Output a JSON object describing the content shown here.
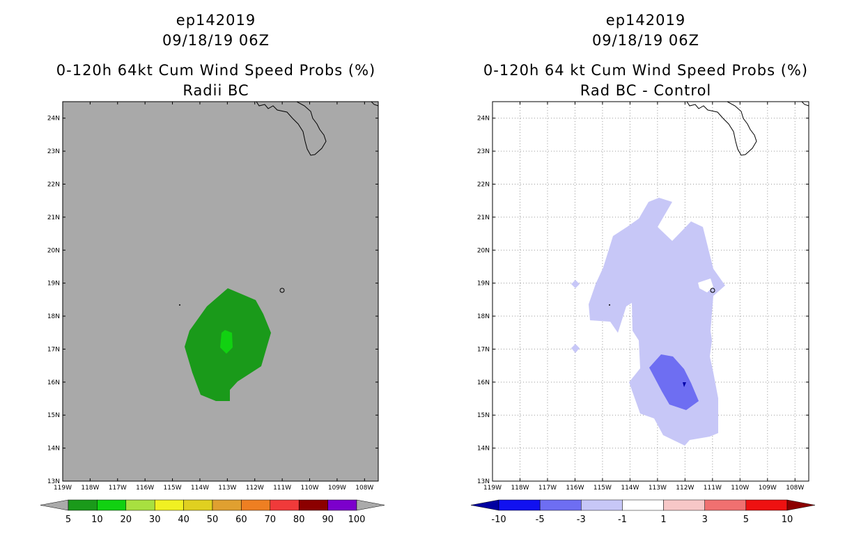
{
  "left_panel": {
    "storm_id": "ep142019",
    "datetime": "09/18/19 06Z",
    "title": "0-120h 64kt Cum Wind Speed Probs (%)",
    "subtitle": "Radii BC",
    "background_color": "#a9a9a9",
    "contour_colors": [
      "#1a9a1a",
      "#11d111"
    ]
  },
  "right_panel": {
    "storm_id": "ep142019",
    "datetime": "09/18/19 06Z",
    "title": "0-120h 64 kt Cum Wind Speed Probs (%)",
    "subtitle": "Rad BC - Control",
    "contour_colors": [
      "#c7c7f7",
      "#6e6ef2"
    ]
  },
  "axes": {
    "lat_labels": [
      "24N",
      "23N",
      "22N",
      "21N",
      "20N",
      "19N",
      "18N",
      "17N",
      "16N",
      "15N",
      "14N",
      "13N"
    ],
    "lon_labels": [
      "119W",
      "118W",
      "117W",
      "116W",
      "115W",
      "114W",
      "113W",
      "112W",
      "111W",
      "110W",
      "109W",
      "108W"
    ],
    "lat_range": [
      13,
      24.5
    ],
    "lon_range": [
      -119,
      -108
    ]
  },
  "left_legend": {
    "labels": [
      "5",
      "10",
      "20",
      "30",
      "40",
      "50",
      "60",
      "70",
      "80",
      "90",
      "100"
    ],
    "colors": [
      "#aaaaaa",
      "#1a9a1a",
      "#11d111",
      "#a8e040",
      "#f0f022",
      "#e0d020",
      "#e0a030",
      "#ee7f22",
      "#f03a3a",
      "#8c0000",
      "#7c00cc",
      "#aaaaaa"
    ]
  },
  "right_legend": {
    "labels": [
      "-10",
      "-5",
      "-3",
      "-1",
      "1",
      "3",
      "5",
      "10"
    ],
    "colors": [
      "#0000a0",
      "#1111f0",
      "#6e6ef2",
      "#c7c7f7",
      "#ffffff",
      "#f7c7c7",
      "#f07070",
      "#ee1111",
      "#8c0000"
    ]
  }
}
